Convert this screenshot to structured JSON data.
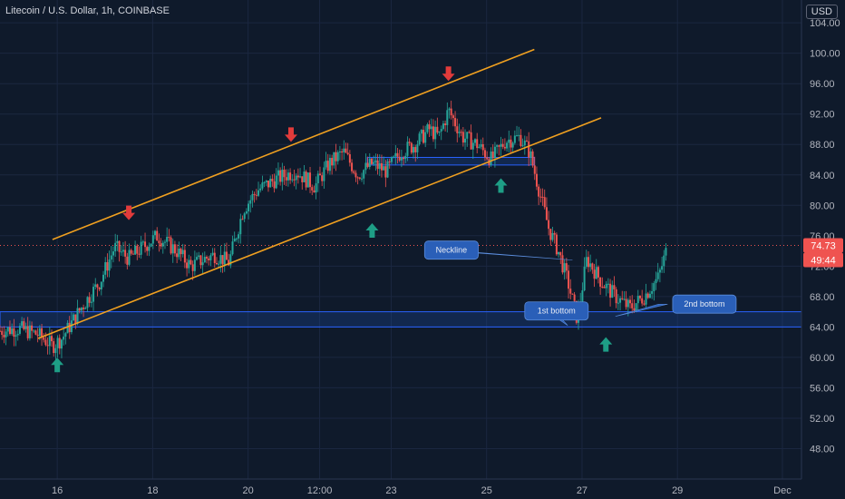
{
  "header": {
    "title": "Litecoin / U.S. Dollar, 1h, COINBASE",
    "currency_button": "USD"
  },
  "colors": {
    "background": "#0f1a2b",
    "up_candle": "#26a69a",
    "down_candle": "#ef5350",
    "channel_line": "#f0a020",
    "zone_fill": "#1d4fa8",
    "zone_border": "#2962ff",
    "callout": "#2a5fb8",
    "arrow_up": "#1e9e86",
    "arrow_down": "#e23b3b",
    "price_tag": "#ef5350"
  },
  "chart_data": {
    "type": "candlestick",
    "title": "Litecoin / U.S. Dollar, 1h, COINBASE",
    "y_axis": {
      "range": [
        44,
        107
      ],
      "ticks": [
        "104.00",
        "100.00",
        "96.00",
        "92.00",
        "88.00",
        "84.00",
        "80.00",
        "76.00",
        "72.00",
        "68.00",
        "64.00",
        "60.00",
        "56.00",
        "52.00",
        "48.00"
      ],
      "tick_values": [
        104,
        100,
        96,
        92,
        88,
        84,
        80,
        76,
        72,
        68,
        64,
        60,
        56,
        52,
        48
      ]
    },
    "x_axis": {
      "ticks": [
        "16",
        "18",
        "20",
        "12:00",
        "23",
        "25",
        "27",
        "29",
        "Dec"
      ],
      "tick_days": [
        16,
        18,
        20,
        21.5,
        23,
        25,
        27,
        29,
        31.2
      ],
      "range_days": [
        14.8,
        31.6
      ]
    },
    "series_path_days": [
      14.8,
      15.2,
      15.6,
      15.9,
      16.1,
      16.5,
      16.9,
      17.2,
      17.5,
      17.8,
      18.1,
      18.5,
      18.8,
      19.1,
      19.3,
      19.6,
      19.9,
      20.2,
      20.6,
      21.0,
      21.4,
      21.7,
      22.0,
      22.3,
      22.6,
      22.9,
      23.2,
      23.5,
      23.8,
      24.0,
      24.2,
      24.5,
      24.8,
      25.1,
      25.4,
      25.7,
      25.9,
      26.1,
      26.3,
      26.5,
      26.7,
      26.9,
      27.1,
      27.4,
      27.7,
      28.0,
      28.3,
      28.6,
      28.8
    ],
    "series_path_values": [
      63.5,
      63.8,
      63.0,
      61.5,
      62.5,
      66.5,
      70.0,
      74.5,
      73.0,
      74.5,
      76.0,
      74.0,
      72.0,
      73.0,
      73.5,
      72.5,
      79.5,
      82.0,
      83.5,
      84.5,
      82.5,
      85.5,
      87.0,
      84.0,
      85.5,
      84.5,
      87.0,
      88.0,
      90.0,
      89.0,
      92.5,
      89.0,
      88.0,
      86.0,
      88.5,
      89.0,
      87.0,
      82.0,
      77.0,
      74.0,
      70.0,
      65.0,
      73.0,
      70.0,
      68.0,
      66.5,
      68.0,
      70.5,
      74.7
    ],
    "levels": {
      "last_price": "74.73",
      "countdown": "49:44",
      "dotted_line_value": 74.73
    },
    "channel": {
      "upper": {
        "start": [
          15.9,
          75.5
        ],
        "end": [
          26.0,
          100.5
        ]
      },
      "lower": {
        "start": [
          15.6,
          62.5
        ],
        "end": [
          27.4,
          91.5
        ]
      }
    },
    "zones": [
      {
        "day_from": 14.8,
        "day_to": 31.6,
        "value_low": 64.0,
        "value_high": 66.0
      },
      {
        "day_from": 22.5,
        "day_to": 26.0,
        "value_low": 85.3,
        "value_high": 86.3
      }
    ],
    "arrows": [
      {
        "direction": "up",
        "day": 16.0,
        "value": 59.0
      },
      {
        "direction": "down",
        "day": 17.5,
        "value": 79.0
      },
      {
        "direction": "down",
        "day": 20.9,
        "value": 89.3
      },
      {
        "direction": "up",
        "day": 22.6,
        "value": 76.7
      },
      {
        "direction": "down",
        "day": 24.2,
        "value": 97.3
      },
      {
        "direction": "up",
        "day": 25.3,
        "value": 82.6
      },
      {
        "direction": "up",
        "day": 27.5,
        "value": 61.7
      }
    ],
    "callouts": [
      {
        "label": "Neckline",
        "box_day": 23.7,
        "box_value": 75.3,
        "pointer_to": [
          26.8,
          72.8
        ],
        "pointer_from": [
          24.3,
          74.0
        ]
      },
      {
        "label": "1st bottom",
        "box_day": 25.8,
        "box_value": 67.3,
        "pointer_to": [
          26.7,
          64.2
        ],
        "pointer_from": [
          26.3,
          66.3
        ]
      },
      {
        "label": "2nd bottom",
        "box_day": 28.9,
        "box_value": 68.2,
        "pointer_to": [
          27.7,
          65.4
        ],
        "pointer_from": [
          28.7,
          67.0
        ]
      }
    ]
  }
}
